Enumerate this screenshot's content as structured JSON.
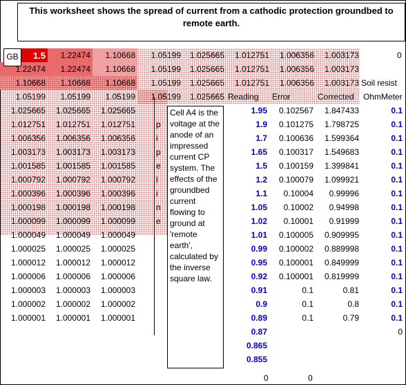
{
  "title": "This worksheet shows the spread of current from a cathodic protection groundbed to remote earth.",
  "gb_label": "GB",
  "grid_rows": [
    [
      "1.5",
      "1.22474",
      "1.10668",
      "1.05199",
      "1.025665",
      "1.012751",
      "1.006356",
      "1.003173"
    ],
    [
      "1.22474",
      "1.22474",
      "1.10668",
      "1.05199",
      "1.025665",
      "1.012751",
      "1.006356",
      "1.003173"
    ],
    [
      "1.10668",
      "1.10668",
      "1.10668",
      "1.05199",
      "1.025665",
      "1.012751",
      "1.006356",
      "1.003173"
    ],
    [
      "1.05199",
      "1.05199",
      "1.05199",
      "1.05199",
      "1.025665"
    ],
    [
      "1.025665",
      "1.025665",
      "1.025665"
    ],
    [
      "1.012751",
      "1.012751",
      "1.012751"
    ],
    [
      "1.006356",
      "1.006356",
      "1.006356"
    ],
    [
      "1.003173",
      "1.003173",
      "1.003173"
    ],
    [
      "1.001585",
      "1.001585",
      "1.001585"
    ],
    [
      "1.000792",
      "1.000792",
      "1.000792"
    ],
    [
      "1.000396",
      "1.000396",
      "1.000396"
    ],
    [
      "1.000198",
      "1.000198",
      "1.000198"
    ],
    [
      "1.000099",
      "1.000099",
      "1.000099"
    ],
    [
      "1.000049",
      "1.000049",
      "1.000049"
    ],
    [
      "1.000025",
      "1.000025",
      "1.000025"
    ],
    [
      "1.000012",
      "1.000012",
      "1.000012"
    ],
    [
      "1.000006",
      "1.000006",
      "1.000006"
    ],
    [
      "1.000003",
      "1.000003",
      "1.000003"
    ],
    [
      "1.000002",
      "1.000002",
      "1.000002"
    ],
    [
      "1.000001",
      "1.000001",
      "1.000001"
    ]
  ],
  "side_letters": [
    "p",
    "i",
    "p",
    "e",
    "l",
    "i",
    "n",
    "e"
  ],
  "note": "Cell A4 is the voltage at the anode of an impressed current CP system. The effects of the groundbed current flowing to ground at 'remote earth', calculated by the inverse square law.",
  "row1_last": "0",
  "soil_resist_label": "Soil resist",
  "headers": {
    "reading": "Reading",
    "error": "Error",
    "corrected": "Corrected",
    "ohm": "OhmMeter"
  },
  "table": [
    [
      "1.95",
      "0.102567",
      "1.847433",
      "0.1"
    ],
    [
      "1.9",
      "0.101275",
      "1.798725",
      "0.1"
    ],
    [
      "1.7",
      "0.100636",
      "1.599364",
      "0.1"
    ],
    [
      "1.65",
      "0.100317",
      "1.549683",
      "0.1"
    ],
    [
      "1.5",
      "0.100159",
      "1.399841",
      "0.1"
    ],
    [
      "1.2",
      "0.100079",
      "1.099921",
      "0.1"
    ],
    [
      "1.1",
      "0.10004",
      "0.99996",
      "0.1"
    ],
    [
      "1.05",
      "0.10002",
      "0.94998",
      "0.1"
    ],
    [
      "1.02",
      "0.10001",
      "0.91999",
      "0.1"
    ],
    [
      "1.01",
      "0.100005",
      "0.909995",
      "0.1"
    ],
    [
      "0.99",
      "0.100002",
      "0.889998",
      "0.1"
    ],
    [
      "0.95",
      "0.100001",
      "0.849999",
      "0.1"
    ],
    [
      "0.92",
      "0.100001",
      "0.819999",
      "0.1"
    ],
    [
      "0.91",
      "0.1",
      "0.81",
      "0.1"
    ],
    [
      "0.9",
      "0.1",
      "0.8",
      "0.1"
    ],
    [
      "0.89",
      "0.1",
      "0.79",
      "0.1"
    ],
    [
      "0.87",
      "",
      "",
      "0"
    ],
    [
      "0.865",
      "",
      "",
      ""
    ],
    [
      "0.855",
      "",
      "",
      ""
    ]
  ],
  "bottom_zeros": [
    "0",
    "0"
  ]
}
